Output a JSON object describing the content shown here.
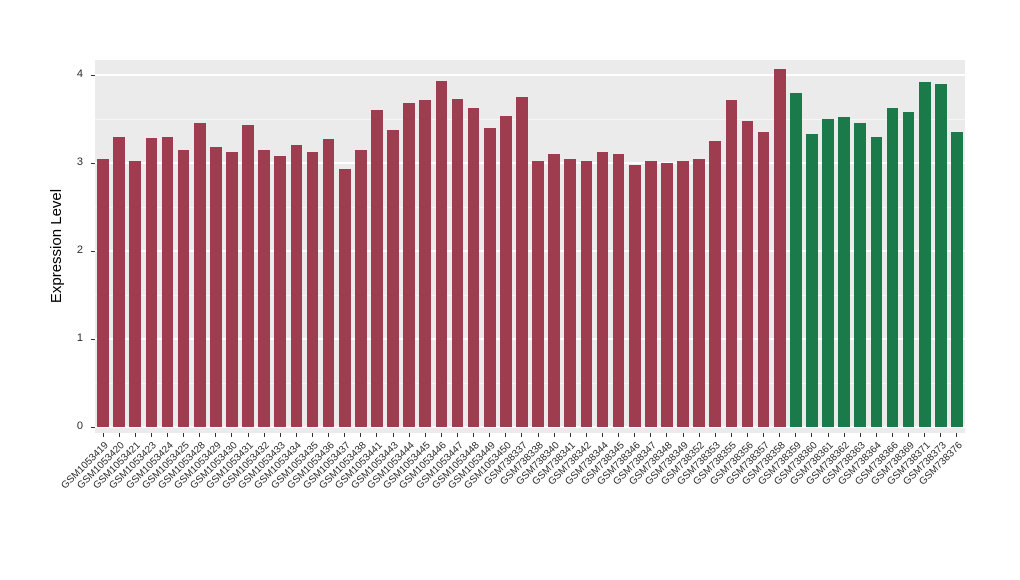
{
  "chart_data": {
    "type": "bar",
    "title": "",
    "xlabel": "",
    "ylabel": "Expression Level",
    "ylim": [
      0,
      4.2
    ],
    "yticks": [
      0,
      1,
      2,
      3,
      4
    ],
    "grid": "horizontal major and minor white gridlines on gray panel",
    "legend": "none",
    "panel_background": "#ebebeb",
    "groups": [
      {
        "color": "#9e3d4f",
        "from": 0,
        "to": 42
      },
      {
        "color": "#1b7a49",
        "from": 43,
        "to": 53
      }
    ],
    "categories": [
      "GSM1053419",
      "GSM1053420",
      "GSM1053421",
      "GSM1053423",
      "GSM1053424",
      "GSM1053425",
      "GSM1053428",
      "GSM1053429",
      "GSM1053430",
      "GSM1053431",
      "GSM1053432",
      "GSM1053433",
      "GSM1053434",
      "GSM1053435",
      "GSM1053436",
      "GSM1053437",
      "GSM1053438",
      "GSM1053441",
      "GSM1053443",
      "GSM1053444",
      "GSM1053445",
      "GSM1053446",
      "GSM1053447",
      "GSM1053448",
      "GSM1053449",
      "GSM1053450",
      "GSM738337",
      "GSM738338",
      "GSM738340",
      "GSM738341",
      "GSM738342",
      "GSM738344",
      "GSM738345",
      "GSM738346",
      "GSM738347",
      "GSM738348",
      "GSM738349",
      "GSM738352",
      "GSM738353",
      "GSM738355",
      "GSM738356",
      "GSM738357",
      "GSM738358",
      "GSM738359",
      "GSM738360",
      "GSM738361",
      "GSM738362",
      "GSM738363",
      "GSM738364",
      "GSM738366",
      "GSM738369",
      "GSM738371",
      "GSM738373",
      "GSM738376"
    ],
    "values": [
      3.05,
      3.3,
      3.02,
      3.28,
      3.3,
      3.15,
      3.45,
      3.18,
      3.12,
      3.43,
      3.15,
      3.08,
      3.2,
      3.12,
      3.27,
      2.93,
      3.15,
      3.6,
      3.37,
      3.68,
      3.72,
      3.93,
      3.73,
      3.62,
      3.4,
      3.53,
      3.75,
      3.02,
      3.1,
      3.05,
      3.02,
      3.12,
      3.1,
      2.98,
      3.02,
      3.0,
      3.02,
      3.05,
      3.25,
      3.72,
      3.48,
      3.35,
      4.07,
      3.8,
      3.33,
      3.5,
      3.52,
      3.45,
      3.3,
      3.62,
      3.58,
      3.92,
      3.9,
      3.35
    ]
  }
}
